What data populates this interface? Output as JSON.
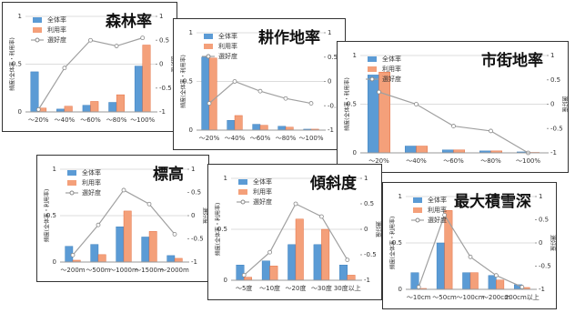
{
  "chart_data": [
    {
      "type": "bar",
      "title": "森林率",
      "categories": [
        "～20%",
        "～40%",
        "～60%",
        "～80%",
        "～100%"
      ],
      "series": [
        {
          "name": "全体率",
          "color": "#5b9bd5",
          "values": [
            0.42,
            0.03,
            0.07,
            0.1,
            0.48
          ]
        },
        {
          "name": "利用率",
          "color": "#f4a07a",
          "values": [
            0.04,
            0.06,
            0.11,
            0.18,
            0.7
          ]
        },
        {
          "name": "選好度",
          "color": "#a0a0a0",
          "axis": "y2",
          "values": [
            -0.95,
            -0.08,
            0.5,
            0.38,
            0.55
          ]
        }
      ],
      "ylabel": "頻度(全体率・利用率)",
      "y2label": "選好度",
      "ylim": [
        0,
        1
      ],
      "yticks": [
        0,
        0.5,
        1
      ],
      "y2lim": [
        -1,
        1
      ],
      "y2ticks": [
        -1,
        -0.5,
        0,
        0.5,
        1
      ],
      "grid": true
    },
    {
      "type": "bar",
      "title": "耕作地率",
      "categories": [
        "～20%",
        "～40%",
        "～60%",
        "～80%",
        "～100%"
      ],
      "series": [
        {
          "name": "全体率",
          "color": "#5b9bd5",
          "values": [
            0.75,
            0.1,
            0.06,
            0.04,
            0.01
          ]
        },
        {
          "name": "利用率",
          "color": "#f4a07a",
          "values": [
            0.74,
            0.15,
            0.05,
            0.03,
            0.01
          ]
        },
        {
          "name": "選好度",
          "color": "#a0a0a0",
          "axis": "y2",
          "values": [
            -0.45,
            0.0,
            -0.2,
            -0.35,
            -0.45
          ]
        }
      ],
      "ylabel": "頻度(全体率・利用率)",
      "y2label": "選好度",
      "ylim": [
        0,
        1
      ],
      "yticks": [
        0,
        0.5,
        1
      ],
      "y2lim": [
        -1,
        1
      ],
      "y2ticks": [
        -1,
        -0.5,
        0,
        0.5,
        1
      ],
      "grid": true
    },
    {
      "type": "bar",
      "title": "市街地率",
      "categories": [
        "～20%",
        "～40%",
        "～60%",
        "～80%",
        "～100%"
      ],
      "series": [
        {
          "name": "全体率",
          "color": "#5b9bd5",
          "values": [
            0.8,
            0.07,
            0.03,
            0.02,
            0.01
          ]
        },
        {
          "name": "利用率",
          "color": "#f4a07a",
          "values": [
            0.83,
            0.07,
            0.03,
            0.02,
            0.005
          ]
        },
        {
          "name": "選好度",
          "color": "#a0a0a0",
          "axis": "y2",
          "values": [
            0.25,
            0.0,
            -0.45,
            -0.55,
            -1
          ]
        }
      ],
      "ylabel": "頻度(全体率・利用率)",
      "y2label": "選好度",
      "ylim": [
        0,
        1
      ],
      "yticks": [
        0,
        0.5,
        1
      ],
      "y2lim": [
        -1,
        1
      ],
      "y2ticks": [
        -1,
        -0.5,
        0,
        0.5,
        1
      ],
      "grid": true
    },
    {
      "type": "bar",
      "title": "標高",
      "categories": [
        "～200m",
        "～500m",
        "～1000m",
        "～1500m",
        "～2000m"
      ],
      "series": [
        {
          "name": "全体率",
          "color": "#5b9bd5",
          "values": [
            0.17,
            0.19,
            0.38,
            0.27,
            0.07
          ]
        },
        {
          "name": "利用率",
          "color": "#f4a07a",
          "values": [
            0.02,
            0.08,
            0.55,
            0.33,
            0.04
          ]
        },
        {
          "name": "選好度",
          "color": "#a0a0a0",
          "axis": "y2",
          "values": [
            -0.85,
            -0.2,
            0.55,
            0.25,
            -0.4
          ]
        }
      ],
      "ylabel": "頻度(全体率・利用率)",
      "y2label": "選好度",
      "ylim": [
        0,
        1
      ],
      "yticks": [
        0,
        0.5,
        1
      ],
      "y2lim": [
        -1,
        1
      ],
      "y2ticks": [
        -1,
        -0.5,
        0,
        0.5,
        1
      ],
      "grid": true
    },
    {
      "type": "bar",
      "title": "傾斜度",
      "categories": [
        "～5度",
        "～10度",
        "～20度",
        "～30度",
        "30度以上"
      ],
      "series": [
        {
          "name": "全体率",
          "color": "#5b9bd5",
          "values": [
            0.15,
            0.19,
            0.35,
            0.35,
            0.15
          ]
        },
        {
          "name": "利用率",
          "color": "#f4a07a",
          "values": [
            0.03,
            0.14,
            0.6,
            0.5,
            0.05
          ]
        },
        {
          "name": "選好度",
          "color": "#a0a0a0",
          "axis": "y2",
          "values": [
            -0.9,
            -0.45,
            0.5,
            0.25,
            -0.6
          ]
        }
      ],
      "ylabel": "頻度(全体率・利用率)",
      "y2label": "選好度",
      "ylim": [
        0,
        1
      ],
      "yticks": [
        0,
        0.5,
        1
      ],
      "y2lim": [
        -1,
        1
      ],
      "y2ticks": [
        -1,
        -0.5,
        0,
        0.5,
        1
      ],
      "grid": true
    },
    {
      "type": "bar",
      "title": "最大積雪深",
      "categories": [
        "～10cm",
        "～50cm",
        "～100cm",
        "～200cm",
        "200cm以上"
      ],
      "series": [
        {
          "name": "全体率",
          "color": "#5b9bd5",
          "values": [
            0.18,
            0.5,
            0.18,
            0.15,
            0.05
          ]
        },
        {
          "name": "利用率",
          "color": "#f4a07a",
          "values": [
            0.01,
            0.85,
            0.18,
            0.1,
            0.02
          ]
        },
        {
          "name": "選好度",
          "color": "#a0a0a0",
          "axis": "y2",
          "values": [
            -0.95,
            0.6,
            -0.3,
            -0.7,
            -0.95
          ]
        }
      ],
      "ylabel": "頻度(全体率・利用率)",
      "y2label": "選好度",
      "ylim": [
        0,
        1
      ],
      "yticks": [
        0,
        0.5,
        1
      ],
      "y2lim": [
        -1,
        1
      ],
      "y2ticks": [
        -1,
        -0.5,
        0,
        0.5,
        1
      ],
      "grid": true
    }
  ]
}
